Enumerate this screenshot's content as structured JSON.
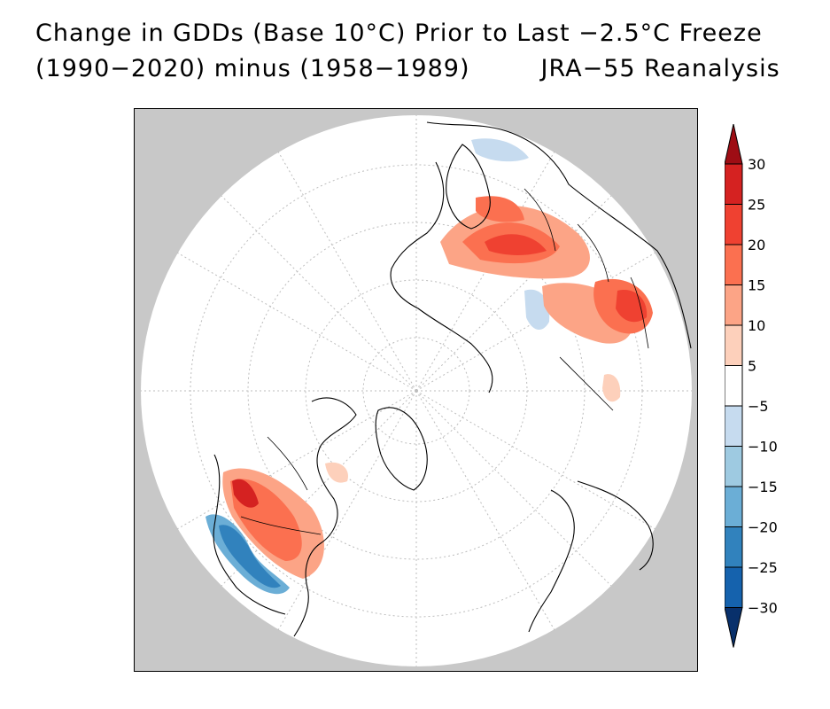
{
  "title": {
    "line1": "Change in GDDs (Base 10°C) Prior to Last −2.5°C Freeze",
    "line2_left": "(1990−2020) minus (1958−1989)",
    "line2_right": "JRA−55 Reanalysis"
  },
  "map": {
    "projection": "north-polar-stereographic",
    "background_color": "#c8c8c8",
    "disk_color": "#ffffff",
    "coastline_color": "#000000"
  },
  "colorbar": {
    "labels": [
      "30",
      "25",
      "20",
      "15",
      "10",
      "5",
      "−5",
      "−10",
      "−15",
      "−20",
      "−25",
      "−30"
    ],
    "colors": [
      "#9e0d14",
      "#d52221",
      "#ef4131",
      "#fb7050",
      "#fca486",
      "#fdd0bb",
      "#ffffff",
      "#c6dbef",
      "#9ecae1",
      "#6baed6",
      "#3182bd",
      "#1562ad",
      "#08306b"
    ]
  }
}
